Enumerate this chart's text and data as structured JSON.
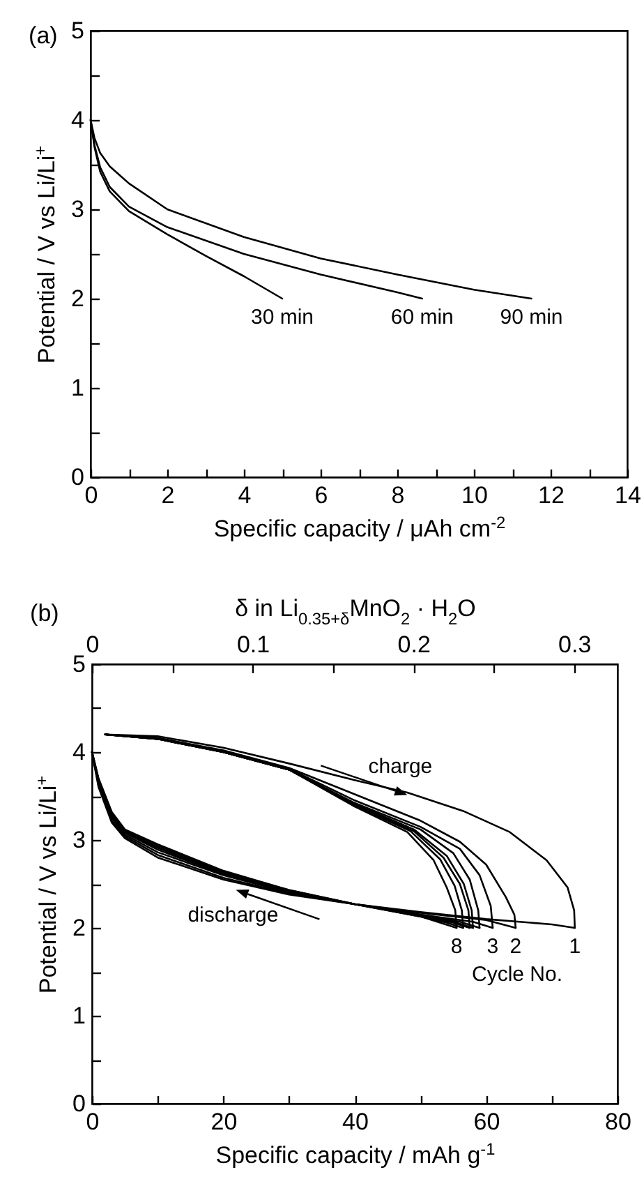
{
  "chart_data": [
    {
      "type": "line",
      "title": "(a)",
      "xlabel": "Specific capacity / μAh cm$^{-2}$",
      "ylabel": "Potential / V vs Li/Li$^{+}$",
      "xlim": [
        0,
        14
      ],
      "ylim": [
        0,
        5
      ],
      "xticks": [
        0,
        {
          "value": 1,
          "label": null
        },
        2,
        {
          "value": 3,
          "label": null
        },
        4,
        {
          "value": 5,
          "label": null
        },
        6,
        {
          "value": 7,
          "label": null
        },
        8,
        {
          "value": 9,
          "label": null
        },
        10,
        {
          "value": 11,
          "label": null
        },
        12,
        {
          "value": 13,
          "label": null
        },
        14
      ],
      "yticks": [
        0,
        {
          "value": 0.5,
          "label": null
        },
        1,
        {
          "value": 1.5,
          "label": null
        },
        2,
        {
          "value": 2.5,
          "label": null
        },
        3,
        {
          "value": 3.5,
          "label": null
        },
        4,
        {
          "value": 4.5,
          "label": null
        },
        5
      ],
      "series": [
        {
          "name": "30 min",
          "color": "#000000",
          "x": [
            0,
            0.1,
            0.25,
            0.5,
            1,
            2,
            3,
            4,
            5
          ],
          "values": [
            4.0,
            3.7,
            3.42,
            3.2,
            2.98,
            2.72,
            2.48,
            2.25,
            2.0
          ]
        },
        {
          "name": "60 min",
          "color": "#000000",
          "x": [
            0,
            0.1,
            0.25,
            0.5,
            1,
            2,
            4,
            6,
            8,
            8.65
          ],
          "values": [
            4.0,
            3.72,
            3.47,
            3.25,
            3.03,
            2.8,
            2.5,
            2.27,
            2.07,
            2.0
          ]
        },
        {
          "name": "90 min",
          "color": "#000000",
          "x": [
            0,
            0.1,
            0.25,
            0.5,
            1,
            2,
            4,
            6,
            8,
            10,
            11.5
          ],
          "values": [
            4.0,
            3.8,
            3.63,
            3.48,
            3.29,
            3.0,
            2.69,
            2.45,
            2.27,
            2.1,
            2.0
          ]
        }
      ]
    },
    {
      "type": "line",
      "title": "(b)",
      "xlabel": "Specific capacity / mAh g$^{-1}$",
      "ylabel": "Potential / V vs Li/Li$^{+}$",
      "x2label": "δ in Li$_{0.35+δ}$MnO$_{2}$ · H$_{2}$O",
      "xlim": [
        0,
        80
      ],
      "ylim": [
        0,
        5
      ],
      "x2lim": [
        0,
        0.327
      ],
      "xticks": [
        0,
        {
          "value": 10,
          "label": null
        },
        20,
        {
          "value": 30,
          "label": null
        },
        40,
        {
          "value": 50,
          "label": null
        },
        60,
        {
          "value": 70,
          "label": null
        },
        80
      ],
      "x2ticks": [
        0,
        {
          "value": 0.05,
          "label": null
        },
        0.1,
        {
          "value": 0.15,
          "label": null
        },
        0.2,
        {
          "value": 0.25,
          "label": null
        },
        0.3
      ],
      "yticks": [
        0,
        {
          "value": 0.5,
          "label": null
        },
        1,
        {
          "value": 1.5,
          "label": null
        },
        2,
        {
          "value": 2.5,
          "label": null
        },
        3,
        {
          "value": 3.5,
          "label": null
        },
        4,
        {
          "value": 4.5,
          "label": null
        },
        5
      ],
      "annotations": [
        {
          "text": "charge",
          "x": 48,
          "y": 3.52
        },
        {
          "text": "discharge",
          "x": 21.9,
          "y": 2.44
        },
        "Cycle No."
      ],
      "series": [
        {
          "color": "#000000",
          "x": [
            0,
            1,
            3,
            5,
            10,
            20,
            30,
            40,
            50,
            60,
            70,
            73.5
          ],
          "values": [
            4.0,
            3.6,
            3.2,
            3.02,
            2.8,
            2.55,
            2.38,
            2.27,
            2.18,
            2.1,
            2.04,
            2.0
          ]
        },
        {
          "color": "#000000",
          "x": [
            0,
            1,
            3,
            5,
            10,
            20,
            30,
            40,
            50,
            60,
            64.5
          ],
          "values": [
            4.0,
            3.62,
            3.22,
            3.04,
            2.83,
            2.57,
            2.39,
            2.27,
            2.17,
            2.09,
            2.0
          ]
        },
        {
          "color": "#000000",
          "x": [
            0,
            1,
            3,
            5,
            10,
            20,
            30,
            40,
            50,
            58,
            61
          ],
          "values": [
            4.0,
            3.64,
            3.25,
            3.06,
            2.86,
            2.6,
            2.4,
            2.27,
            2.15,
            2.07,
            2.0
          ]
        },
        {
          "color": "#000000",
          "x": [
            0,
            1,
            3,
            5,
            10,
            20,
            30,
            40,
            50,
            56,
            59
          ],
          "values": [
            4.0,
            3.65,
            3.27,
            3.08,
            2.89,
            2.61,
            2.41,
            2.27,
            2.15,
            2.07,
            2.0
          ]
        },
        {
          "color": "#000000",
          "x": [
            0,
            1,
            3,
            5,
            10,
            20,
            30,
            40,
            50,
            55,
            58
          ],
          "values": [
            4.0,
            3.67,
            3.28,
            3.09,
            2.91,
            2.62,
            2.42,
            2.27,
            2.14,
            2.07,
            2.0
          ]
        },
        {
          "color": "#000000",
          "x": [
            0,
            1,
            3,
            5,
            10,
            20,
            30,
            40,
            50,
            55,
            57.5
          ],
          "values": [
            4.0,
            3.68,
            3.3,
            3.1,
            2.92,
            2.63,
            2.42,
            2.27,
            2.14,
            2.06,
            2.0
          ]
        },
        {
          "color": "#000000",
          "x": [
            0,
            1,
            3,
            5,
            10,
            20,
            30,
            40,
            50,
            54,
            56.5
          ],
          "values": [
            4.0,
            3.69,
            3.31,
            3.11,
            2.94,
            2.64,
            2.43,
            2.27,
            2.13,
            2.06,
            2.0
          ]
        },
        {
          "color": "#000000",
          "x": [
            0,
            1,
            3,
            5,
            10,
            20,
            30,
            40,
            50,
            53,
            55.5
          ],
          "values": [
            4.0,
            3.7,
            3.32,
            3.12,
            2.95,
            2.65,
            2.43,
            2.27,
            2.13,
            2.06,
            2.0
          ]
        },
        {
          "name": "1",
          "color": "#000000",
          "x": [
            2,
            10,
            20,
            30,
            40,
            48,
            56.5,
            63.6,
            69.2,
            72.4,
            73.4,
            73.5
          ],
          "values": [
            4.2,
            4.18,
            4.05,
            3.87,
            3.68,
            3.54,
            3.33,
            3.09,
            2.77,
            2.46,
            2.2,
            2.0
          ]
        },
        {
          "name": "2",
          "color": "#000000",
          "x": [
            2,
            10,
            20,
            30,
            40,
            50,
            56,
            60,
            63,
            64.3,
            64.5
          ],
          "values": [
            4.2,
            4.16,
            4.02,
            3.82,
            3.52,
            3.22,
            2.98,
            2.72,
            2.35,
            2.15,
            2.0
          ]
        },
        {
          "name": "3",
          "color": "#000000",
          "x": [
            2,
            10,
            20,
            30,
            40,
            50,
            56,
            59,
            60.7,
            61
          ],
          "values": [
            4.2,
            4.16,
            4.01,
            3.81,
            3.45,
            3.15,
            2.9,
            2.6,
            2.25,
            2.0
          ]
        },
        {
          "color": "#000000",
          "x": [
            2,
            10,
            20,
            30,
            40,
            50,
            55,
            57.5,
            58.8,
            59
          ],
          "values": [
            4.2,
            4.15,
            4.0,
            3.8,
            3.42,
            3.12,
            2.85,
            2.55,
            2.2,
            2.0
          ]
        },
        {
          "color": "#000000",
          "x": [
            2,
            10,
            20,
            30,
            40,
            49,
            54,
            56.6,
            57.8,
            58
          ],
          "values": [
            4.2,
            4.15,
            4.0,
            3.8,
            3.41,
            3.12,
            2.82,
            2.5,
            2.2,
            2.0
          ]
        },
        {
          "color": "#000000",
          "x": [
            2,
            10,
            20,
            30,
            40,
            49,
            53.5,
            56,
            57.3,
            57.5
          ],
          "values": [
            4.2,
            4.15,
            4.0,
            3.8,
            3.4,
            3.1,
            2.8,
            2.5,
            2.2,
            2.0
          ]
        },
        {
          "color": "#000000",
          "x": [
            2,
            10,
            20,
            30,
            40,
            48.5,
            53,
            55.2,
            56.3,
            56.5
          ],
          "values": [
            4.2,
            4.15,
            4.0,
            3.8,
            3.39,
            3.1,
            2.78,
            2.48,
            2.2,
            2.0
          ]
        },
        {
          "name": "8",
          "color": "#000000",
          "x": [
            2,
            10,
            20,
            30,
            40,
            48,
            52,
            54,
            55.3,
            55.5
          ],
          "values": [
            4.2,
            4.15,
            4.0,
            3.8,
            3.38,
            3.09,
            2.77,
            2.46,
            2.2,
            2.0
          ]
        }
      ]
    }
  ]
}
